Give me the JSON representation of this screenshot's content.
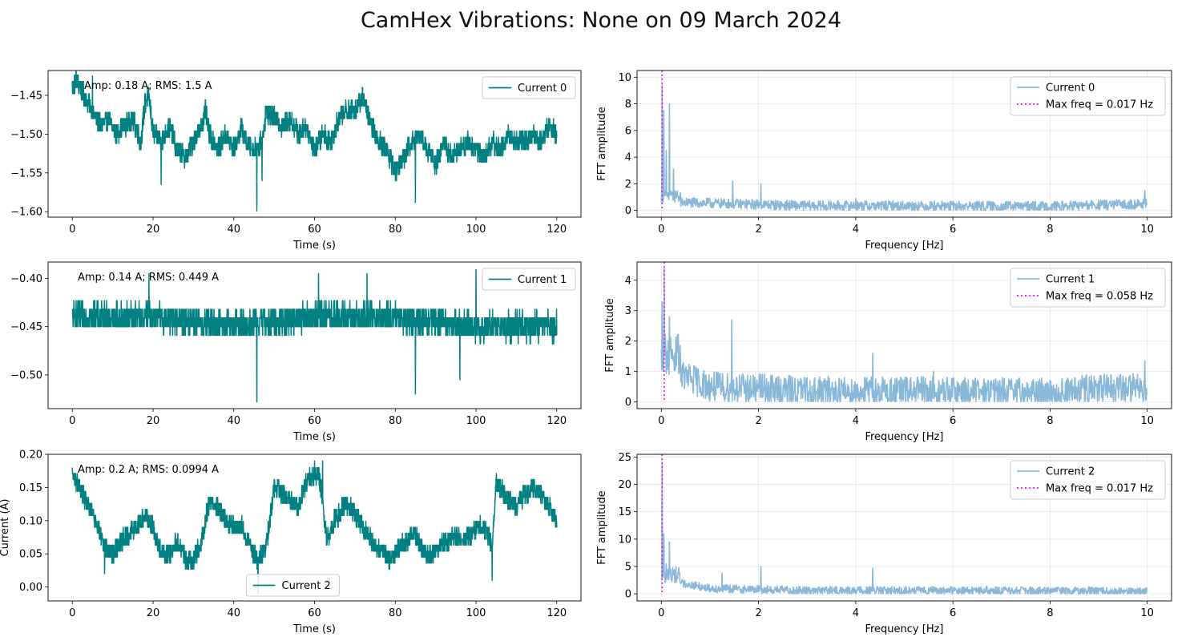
{
  "figure": {
    "title": "CamHex Vibrations: None on 09 March 2024"
  },
  "colors": {
    "time_series": "#008080",
    "fft": "#8ab8d8",
    "max_freq": "#ff00ff",
    "grid": "#e6e6e6"
  },
  "chart_data": [
    {
      "type": "line",
      "panel": "time-0",
      "series": [
        {
          "name": "Current 0"
        }
      ],
      "xlabel": "Time (s)",
      "ylabel": "",
      "xlim": [
        -6,
        126
      ],
      "ylim": [
        -1.607,
        -1.418
      ],
      "xticks": [
        0,
        20,
        40,
        60,
        80,
        100,
        120
      ],
      "yticks": [
        -1.45,
        -1.5,
        -1.55,
        -1.6
      ],
      "ytick_labels": [
        "−1.45",
        "−1.50",
        "−1.55",
        "−1.60"
      ],
      "annotation": "Amp: 0.18 A; RMS: 1.5 A",
      "legend_position": "upper right",
      "keypoints": [
        [
          0,
          -1.44
        ],
        [
          1,
          -1.43
        ],
        [
          3,
          -1.45
        ],
        [
          5,
          -1.47
        ],
        [
          7,
          -1.49
        ],
        [
          9,
          -1.48
        ],
        [
          11,
          -1.5
        ],
        [
          13,
          -1.49
        ],
        [
          15,
          -1.48
        ],
        [
          17,
          -1.51
        ],
        [
          18,
          -1.46
        ],
        [
          19,
          -1.45
        ],
        [
          20,
          -1.5
        ],
        [
          22,
          -1.51
        ],
        [
          24,
          -1.49
        ],
        [
          26,
          -1.52
        ],
        [
          28,
          -1.53
        ],
        [
          30,
          -1.51
        ],
        [
          32,
          -1.49
        ],
        [
          33,
          -1.47
        ],
        [
          34,
          -1.5
        ],
        [
          36,
          -1.52
        ],
        [
          38,
          -1.5
        ],
        [
          40,
          -1.52
        ],
        [
          42,
          -1.49
        ],
        [
          43,
          -1.51
        ],
        [
          45,
          -1.52
        ],
        [
          47,
          -1.51
        ],
        [
          48,
          -1.47
        ],
        [
          50,
          -1.48
        ],
        [
          52,
          -1.49
        ],
        [
          54,
          -1.48
        ],
        [
          56,
          -1.5
        ],
        [
          58,
          -1.49
        ],
        [
          60,
          -1.52
        ],
        [
          62,
          -1.5
        ],
        [
          64,
          -1.51
        ],
        [
          66,
          -1.48
        ],
        [
          68,
          -1.47
        ],
        [
          70,
          -1.47
        ],
        [
          72,
          -1.45
        ],
        [
          74,
          -1.49
        ],
        [
          76,
          -1.51
        ],
        [
          78,
          -1.52
        ],
        [
          80,
          -1.55
        ],
        [
          82,
          -1.53
        ],
        [
          84,
          -1.51
        ],
        [
          86,
          -1.5
        ],
        [
          88,
          -1.52
        ],
        [
          90,
          -1.54
        ],
        [
          92,
          -1.51
        ],
        [
          94,
          -1.53
        ],
        [
          96,
          -1.52
        ],
        [
          98,
          -1.51
        ],
        [
          100,
          -1.52
        ],
        [
          102,
          -1.53
        ],
        [
          104,
          -1.51
        ],
        [
          106,
          -1.52
        ],
        [
          108,
          -1.5
        ],
        [
          110,
          -1.51
        ],
        [
          112,
          -1.51
        ],
        [
          114,
          -1.5
        ],
        [
          116,
          -1.51
        ],
        [
          118,
          -1.49
        ],
        [
          120,
          -1.5
        ]
      ],
      "noise": 0.008,
      "spikes": [
        [
          45.7,
          -1.599
        ],
        [
          85,
          -1.588
        ],
        [
          22,
          -1.565
        ],
        [
          47,
          -1.56
        ],
        [
          5,
          -1.425
        ]
      ]
    },
    {
      "type": "line",
      "panel": "fft-0",
      "series": [
        {
          "name": "Current 0"
        },
        {
          "name": "Max freq = 0.017 Hz",
          "value": 0.017
        }
      ],
      "xlabel": "Frequency [Hz]",
      "ylabel": "FFT amplitude",
      "xlim": [
        -0.5,
        10.5
      ],
      "ylim": [
        -0.5,
        10.5
      ],
      "xticks": [
        0,
        2,
        4,
        6,
        8,
        10
      ],
      "yticks": [
        0,
        2,
        4,
        6,
        8,
        10
      ],
      "legend_position": "upper right",
      "peaks": [
        [
          0.017,
          9.4
        ],
        [
          0.05,
          7.5
        ],
        [
          0.1,
          4.5
        ],
        [
          0.17,
          8.0
        ],
        [
          0.25,
          3.1
        ],
        [
          1.47,
          2.2
        ],
        [
          2.05,
          2.0
        ],
        [
          4.0,
          0.9
        ],
        [
          9.95,
          1.5
        ]
      ],
      "baseline": [
        [
          0.4,
          0.6
        ],
        [
          1,
          0.55
        ],
        [
          3,
          0.35
        ],
        [
          5,
          0.35
        ],
        [
          8,
          0.3
        ],
        [
          10,
          0.5
        ]
      ],
      "noise": 0.15
    },
    {
      "type": "line",
      "panel": "time-1",
      "series": [
        {
          "name": "Current 1"
        }
      ],
      "xlabel": "Time (s)",
      "ylabel": "",
      "xlim": [
        -6,
        126
      ],
      "ylim": [
        -0.535,
        -0.383
      ],
      "xticks": [
        0,
        20,
        40,
        60,
        80,
        100,
        120
      ],
      "yticks": [
        -0.4,
        -0.45,
        -0.5
      ],
      "ytick_labels": [
        "−0.40",
        "−0.45",
        "−0.50"
      ],
      "annotation": "Amp: 0.14 A;  RMS: 0.449 A",
      "legend_position": "upper right",
      "keypoints": [
        [
          0,
          -0.44
        ],
        [
          20,
          -0.44
        ],
        [
          40,
          -0.45
        ],
        [
          60,
          -0.44
        ],
        [
          80,
          -0.44
        ],
        [
          100,
          -0.45
        ],
        [
          120,
          -0.45
        ]
      ],
      "noise": 0.009,
      "spikes": [
        [
          45.7,
          -0.528
        ],
        [
          85,
          -0.52
        ],
        [
          19,
          -0.395
        ],
        [
          61,
          -0.395
        ],
        [
          73,
          -0.395
        ],
        [
          100,
          -0.391
        ],
        [
          96,
          -0.505
        ]
      ]
    },
    {
      "type": "line",
      "panel": "fft-1",
      "series": [
        {
          "name": "Current 1"
        },
        {
          "name": "Max freq = 0.058 Hz",
          "value": 0.058
        }
      ],
      "xlabel": "Frequency [Hz]",
      "ylabel": "FFT amplitude",
      "xlim": [
        -0.5,
        10.5
      ],
      "ylim": [
        -0.22,
        4.6
      ],
      "xticks": [
        0,
        2,
        4,
        6,
        8,
        10
      ],
      "yticks": [
        0,
        1,
        2,
        3,
        4
      ],
      "legend_position": "upper right",
      "peaks": [
        [
          0.058,
          4.4
        ],
        [
          0.02,
          3.3
        ],
        [
          0.17,
          2.8
        ],
        [
          0.25,
          1.5
        ],
        [
          1.45,
          2.7
        ],
        [
          2.05,
          0.9
        ],
        [
          4.35,
          1.6
        ],
        [
          5.6,
          1.0
        ],
        [
          8.75,
          0.9
        ],
        [
          9.95,
          1.35
        ]
      ],
      "baseline": [
        [
          0.4,
          0.9
        ],
        [
          1,
          0.5
        ],
        [
          3,
          0.35
        ],
        [
          5,
          0.35
        ],
        [
          8,
          0.3
        ],
        [
          10,
          0.5
        ]
      ],
      "noise": 0.2
    },
    {
      "type": "line",
      "panel": "time-2",
      "series": [
        {
          "name": "Current 2"
        }
      ],
      "xlabel": "Time (s)",
      "ylabel": "Current (A)",
      "xlim": [
        -6,
        126
      ],
      "ylim": [
        -0.021,
        0.2
      ],
      "xticks": [
        0,
        20,
        40,
        60,
        80,
        100,
        120
      ],
      "yticks": [
        0.0,
        0.05,
        0.1,
        0.15,
        0.2
      ],
      "ytick_labels": [
        "0.00",
        "0.05",
        "0.10",
        "0.15",
        "0.20"
      ],
      "annotation": "Amp: 0.2 A; RMS: 0.0994 A",
      "legend_position": "lower center",
      "keypoints": [
        [
          0,
          0.17
        ],
        [
          2,
          0.15
        ],
        [
          4,
          0.12
        ],
        [
          6,
          0.1
        ],
        [
          8,
          0.06
        ],
        [
          10,
          0.05
        ],
        [
          12,
          0.07
        ],
        [
          14,
          0.08
        ],
        [
          16,
          0.09
        ],
        [
          18,
          0.11
        ],
        [
          20,
          0.09
        ],
        [
          22,
          0.05
        ],
        [
          24,
          0.05
        ],
        [
          26,
          0.07
        ],
        [
          28,
          0.04
        ],
        [
          30,
          0.04
        ],
        [
          32,
          0.07
        ],
        [
          34,
          0.13
        ],
        [
          36,
          0.12
        ],
        [
          38,
          0.1
        ],
        [
          40,
          0.09
        ],
        [
          42,
          0.09
        ],
        [
          44,
          0.06
        ],
        [
          46,
          0.04
        ],
        [
          48,
          0.06
        ],
        [
          50,
          0.15
        ],
        [
          52,
          0.14
        ],
        [
          54,
          0.13
        ],
        [
          56,
          0.12
        ],
        [
          58,
          0.16
        ],
        [
          60,
          0.17
        ],
        [
          61,
          0.17
        ],
        [
          62,
          0.13
        ],
        [
          63,
          0.07
        ],
        [
          65,
          0.1
        ],
        [
          67,
          0.12
        ],
        [
          69,
          0.12
        ],
        [
          71,
          0.1
        ],
        [
          73,
          0.08
        ],
        [
          75,
          0.06
        ],
        [
          77,
          0.05
        ],
        [
          79,
          0.04
        ],
        [
          81,
          0.06
        ],
        [
          83,
          0.07
        ],
        [
          85,
          0.08
        ],
        [
          87,
          0.05
        ],
        [
          89,
          0.05
        ],
        [
          91,
          0.06
        ],
        [
          93,
          0.07
        ],
        [
          95,
          0.08
        ],
        [
          97,
          0.07
        ],
        [
          99,
          0.08
        ],
        [
          101,
          0.09
        ],
        [
          103,
          0.08
        ],
        [
          104,
          0.06
        ],
        [
          105,
          0.16
        ],
        [
          106,
          0.15
        ],
        [
          108,
          0.13
        ],
        [
          110,
          0.12
        ],
        [
          112,
          0.14
        ],
        [
          114,
          0.15
        ],
        [
          116,
          0.14
        ],
        [
          118,
          0.12
        ],
        [
          120,
          0.1
        ]
      ],
      "noise": 0.009,
      "spikes": [
        [
          46,
          -0.01
        ],
        [
          104,
          0.01
        ],
        [
          8,
          0.02
        ],
        [
          60,
          0.19
        ],
        [
          62,
          0.19
        ]
      ]
    },
    {
      "type": "line",
      "panel": "fft-2",
      "series": [
        {
          "name": "Current 2"
        },
        {
          "name": "Max freq = 0.017 Hz",
          "value": 0.017
        }
      ],
      "xlabel": "Frequency [Hz]",
      "ylabel": "FFT amplitude",
      "xlim": [
        -0.5,
        10.5
      ],
      "ylim": [
        -1.3,
        25.5
      ],
      "xticks": [
        0,
        2,
        4,
        6,
        8,
        10
      ],
      "yticks": [
        0,
        5,
        10,
        15,
        20,
        25
      ],
      "legend_position": "upper right",
      "peaks": [
        [
          0.017,
          24
        ],
        [
          0.05,
          11
        ],
        [
          0.1,
          5.5
        ],
        [
          0.17,
          9.5
        ],
        [
          0.25,
          3.5
        ],
        [
          1.25,
          3.8
        ],
        [
          2.05,
          5.0
        ],
        [
          4.35,
          4.7
        ],
        [
          6.7,
          1.4
        ],
        [
          8.8,
          1.3
        ]
      ],
      "baseline": [
        [
          0.4,
          2.0
        ],
        [
          1,
          1.0
        ],
        [
          3,
          0.6
        ],
        [
          5,
          0.6
        ],
        [
          8,
          0.5
        ],
        [
          10,
          0.4
        ]
      ],
      "noise": 0.3
    }
  ]
}
